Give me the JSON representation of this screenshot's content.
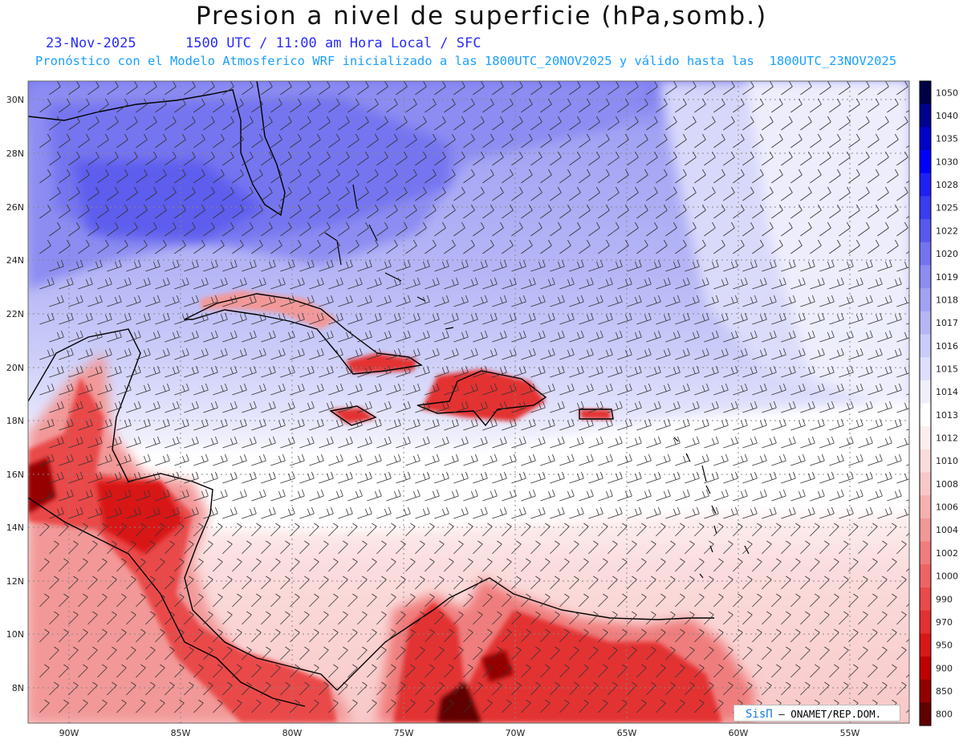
{
  "header": {
    "title": "Presion a nivel de superficie (hPa,somb.)",
    "date": "23-Nov-2025",
    "time_info": "1500 UTC / 11:00 am Hora Local / SFC",
    "forecast_info": "Pronóstico con el Modelo Atmosferico WRF inicializado a las 1800UTC_20NOV2025 y válido hasta las  1800UTC_23NOV2025"
  },
  "map": {
    "lat_labels": [
      "30N",
      "28N",
      "26N",
      "24N",
      "22N",
      "20N",
      "18N",
      "16N",
      "14N",
      "12N",
      "10N",
      "8N"
    ],
    "lon_labels": [
      "90W",
      "85W",
      "80W",
      "75W",
      "70W",
      "65W",
      "60W",
      "55W"
    ],
    "credit_logo": "SisΠ",
    "credit_text": " – ONAMET/REP.DOM."
  },
  "colorbar": {
    "levels": [
      {
        "value": "1050",
        "color": "#000045"
      },
      {
        "value": "1040",
        "color": "#00008f"
      },
      {
        "value": "1035",
        "color": "#0000c8"
      },
      {
        "value": "1030",
        "color": "#0000ff"
      },
      {
        "value": "1028",
        "color": "#2020f5"
      },
      {
        "value": "1025",
        "color": "#3c3cf0"
      },
      {
        "value": "1022",
        "color": "#5858ee"
      },
      {
        "value": "1020",
        "color": "#7474f0"
      },
      {
        "value": "1019",
        "color": "#8c8cf2"
      },
      {
        "value": "1018",
        "color": "#a2a2f4"
      },
      {
        "value": "1017",
        "color": "#b6b6f6"
      },
      {
        "value": "1016",
        "color": "#caccf8"
      },
      {
        "value": "1015",
        "color": "#dedffb"
      },
      {
        "value": "1014",
        "color": "#f0f0fd"
      },
      {
        "value": "1013",
        "color": "#ffffff"
      },
      {
        "value": "1012",
        "color": "#fdeeee"
      },
      {
        "value": "1010",
        "color": "#fbdcdc"
      },
      {
        "value": "1008",
        "color": "#f8c8c8"
      },
      {
        "value": "1006",
        "color": "#f5b0b0"
      },
      {
        "value": "1004",
        "color": "#f29898"
      },
      {
        "value": "1002",
        "color": "#f07d7d"
      },
      {
        "value": "1000",
        "color": "#ee6464"
      },
      {
        "value": "990",
        "color": "#ea4a4a"
      },
      {
        "value": "970",
        "color": "#e33030"
      },
      {
        "value": "950",
        "color": "#d81818"
      },
      {
        "value": "900",
        "color": "#c00000"
      },
      {
        "value": "850",
        "color": "#940000"
      },
      {
        "value": "800",
        "color": "#600000"
      }
    ]
  }
}
